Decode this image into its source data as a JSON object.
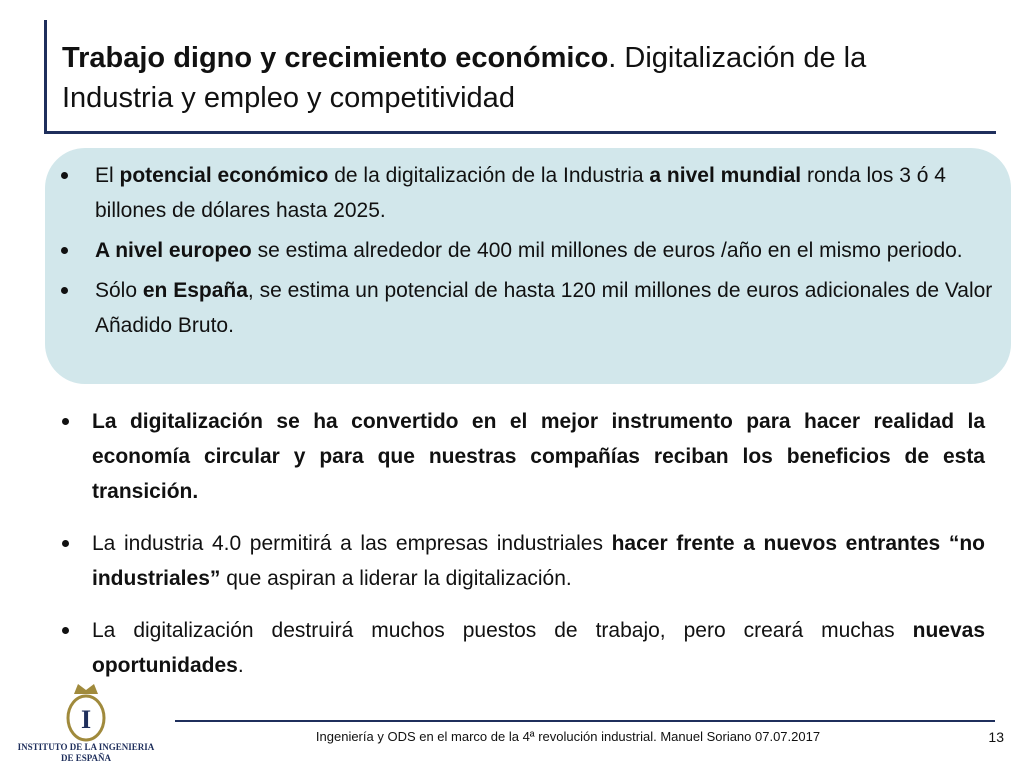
{
  "title": {
    "lines": [
      [
        {
          "text": "Trabajo digno y crecimiento económico",
          "bold": true
        },
        {
          "text": ". Digitalización de la",
          "bold": false
        }
      ],
      [
        {
          "text": "Industria y empleo y competitividad",
          "bold": false
        }
      ]
    ]
  },
  "box_bullets": [
    [
      {
        "text": "El ",
        "bold": false
      },
      {
        "text": "potencial económico",
        "bold": true
      },
      {
        "text": " de la digitalización de la Industria ",
        "bold": false
      },
      {
        "text": "a nivel mundial",
        "bold": true
      },
      {
        "text": " ronda los 3 ó 4 billones de dólares hasta 2025.",
        "bold": false
      }
    ],
    [
      {
        "text": "A nivel europeo",
        "bold": true
      },
      {
        "text": " se estima alrededor de 400 mil millones de euros /año en el mismo periodo.",
        "bold": false
      }
    ],
    [
      {
        "text": "Sólo ",
        "bold": false
      },
      {
        "text": "en España",
        "bold": true
      },
      {
        "text": ", se estima un potencial de hasta 120 mil millones de euros adicionales de Valor Añadido Bruto.",
        "bold": false
      }
    ]
  ],
  "bullets": [
    [
      {
        "text": "La digitalización se ha convertido en el mejor instrumento para hacer realidad la economía circular y para que nuestras compañías reciban los beneficios de esta transición.",
        "bold": true
      }
    ],
    [
      {
        "text": "La industria 4.0 permitirá a las empresas industriales ",
        "bold": false
      },
      {
        "text": "hacer frente a nuevos entrantes “no industriales”",
        "bold": true
      },
      {
        "text": " que aspiran a liderar la digitalización.",
        "bold": false
      }
    ],
    [
      {
        "text": "La digitalización destruirá muchos puestos de trabajo, pero creará muchas ",
        "bold": false
      },
      {
        "text": "nuevas oportunidades",
        "bold": true
      },
      {
        "text": ".",
        "bold": false
      }
    ]
  ],
  "logo": {
    "letter": "I",
    "line1": "INSTITUTO DE LA INGENIERIA",
    "line2": "DE ESPAÑA"
  },
  "footer": {
    "text": "Ingeniería y ODS en el marco de la 4ª revolución industrial. Manuel Soriano 07.07.2017",
    "page": "13"
  }
}
